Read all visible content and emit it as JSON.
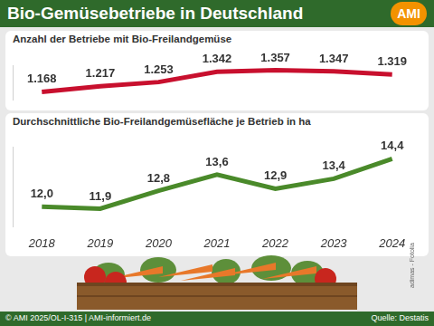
{
  "header": {
    "title": "Bio-Gemüsebetriebe in Deutschland",
    "logo": "AMI"
  },
  "chart_data": [
    {
      "type": "line",
      "title": "Anzahl der Betriebe mit Bio-Freilandgemüse",
      "categories": [
        "2018",
        "2019",
        "2020",
        "2021",
        "2022",
        "2023",
        "2024"
      ],
      "values": [
        1168,
        1217,
        1253,
        1342,
        1357,
        1347,
        1319
      ],
      "value_labels": [
        "1.168",
        "1.217",
        "1.253",
        "1.342",
        "1.357",
        "1.347",
        "1.319"
      ],
      "color": "#c8102e",
      "marker": "none",
      "data_labels": true,
      "tick_labels": false,
      "grid": false,
      "ylim": [
        1100,
        1400
      ],
      "yticks": []
    },
    {
      "type": "line",
      "title": "Durchschnittliche Bio-Freilandgemüsefläche je Betrieb in ha",
      "categories": [
        "2018",
        "2019",
        "2020",
        "2021",
        "2022",
        "2023",
        "2024"
      ],
      "values": [
        12.0,
        11.9,
        12.8,
        13.6,
        12.9,
        13.4,
        14.4
      ],
      "value_labels": [
        "12,0",
        "11,9",
        "12,8",
        "13,6",
        "12,9",
        "13,4",
        "14,4"
      ],
      "color": "#4a8a2a",
      "marker": "none",
      "data_labels": true,
      "tick_labels": "x",
      "grid": false,
      "ylim": [
        11,
        15
      ],
      "yticks": []
    }
  ],
  "photo_credit": "adimas - Fotolia",
  "footer": {
    "copyright": "© AMI 2025/OL-I-315 | AMI-informiert.de",
    "source": "Quelle: Destatis"
  }
}
